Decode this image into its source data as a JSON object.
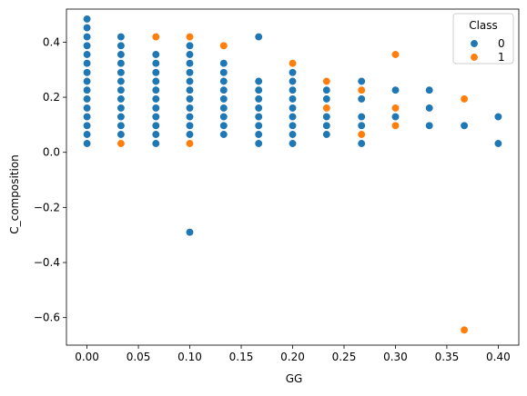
{
  "chart_data": {
    "type": "scatter",
    "xlabel": "GG",
    "ylabel": "C_composition",
    "xlim": [
      -0.02,
      0.42
    ],
    "ylim": [
      -0.7,
      0.52
    ],
    "xticks": [
      0.0,
      0.05,
      0.1,
      0.15,
      0.2,
      0.25,
      0.3,
      0.35,
      0.4
    ],
    "xtick_labels": [
      "0.00",
      "0.05",
      "0.10",
      "0.15",
      "0.20",
      "0.25",
      "0.30",
      "0.35",
      "0.40"
    ],
    "yticks": [
      -0.6,
      -0.4,
      -0.2,
      0.0,
      0.2,
      0.4
    ],
    "ytick_labels": [
      "−0.6",
      "−0.4",
      "−0.2",
      "0.0",
      "0.2",
      "0.4"
    ],
    "grid": false,
    "legend": {
      "title": "Class",
      "placement": "top-right"
    },
    "series": [
      {
        "name": "0",
        "color": "#1f77b4",
        "points": [
          [
            0.0,
            0.032
          ],
          [
            0.0,
            0.065
          ],
          [
            0.0,
            0.097
          ],
          [
            0.0,
            0.129
          ],
          [
            0.0,
            0.161
          ],
          [
            0.0,
            0.194
          ],
          [
            0.0,
            0.226
          ],
          [
            0.0,
            0.258
          ],
          [
            0.0,
            0.29
          ],
          [
            0.0,
            0.323
          ],
          [
            0.0,
            0.355
          ],
          [
            0.0,
            0.387
          ],
          [
            0.0,
            0.419
          ],
          [
            0.0,
            0.452
          ],
          [
            0.0,
            0.484
          ],
          [
            0.033,
            0.065
          ],
          [
            0.033,
            0.097
          ],
          [
            0.033,
            0.129
          ],
          [
            0.033,
            0.161
          ],
          [
            0.033,
            0.194
          ],
          [
            0.033,
            0.226
          ],
          [
            0.033,
            0.258
          ],
          [
            0.033,
            0.29
          ],
          [
            0.033,
            0.323
          ],
          [
            0.033,
            0.355
          ],
          [
            0.033,
            0.387
          ],
          [
            0.033,
            0.419
          ],
          [
            0.067,
            0.032
          ],
          [
            0.067,
            0.065
          ],
          [
            0.067,
            0.097
          ],
          [
            0.067,
            0.129
          ],
          [
            0.067,
            0.161
          ],
          [
            0.067,
            0.194
          ],
          [
            0.067,
            0.226
          ],
          [
            0.067,
            0.258
          ],
          [
            0.067,
            0.29
          ],
          [
            0.067,
            0.323
          ],
          [
            0.067,
            0.355
          ],
          [
            0.1,
            0.065
          ],
          [
            0.1,
            0.097
          ],
          [
            0.1,
            0.129
          ],
          [
            0.1,
            0.161
          ],
          [
            0.1,
            0.194
          ],
          [
            0.1,
            0.226
          ],
          [
            0.1,
            0.258
          ],
          [
            0.1,
            0.29
          ],
          [
            0.1,
            0.323
          ],
          [
            0.1,
            0.355
          ],
          [
            0.1,
            0.387
          ],
          [
            0.1,
            -0.29
          ],
          [
            0.133,
            0.065
          ],
          [
            0.133,
            0.097
          ],
          [
            0.133,
            0.129
          ],
          [
            0.133,
            0.161
          ],
          [
            0.133,
            0.194
          ],
          [
            0.133,
            0.226
          ],
          [
            0.133,
            0.258
          ],
          [
            0.133,
            0.29
          ],
          [
            0.133,
            0.323
          ],
          [
            0.167,
            0.032
          ],
          [
            0.167,
            0.065
          ],
          [
            0.167,
            0.097
          ],
          [
            0.167,
            0.129
          ],
          [
            0.167,
            0.161
          ],
          [
            0.167,
            0.194
          ],
          [
            0.167,
            0.226
          ],
          [
            0.167,
            0.258
          ],
          [
            0.167,
            0.419
          ],
          [
            0.2,
            0.032
          ],
          [
            0.2,
            0.065
          ],
          [
            0.2,
            0.097
          ],
          [
            0.2,
            0.129
          ],
          [
            0.2,
            0.161
          ],
          [
            0.2,
            0.194
          ],
          [
            0.2,
            0.226
          ],
          [
            0.2,
            0.258
          ],
          [
            0.2,
            0.29
          ],
          [
            0.233,
            0.065
          ],
          [
            0.233,
            0.097
          ],
          [
            0.233,
            0.129
          ],
          [
            0.233,
            0.194
          ],
          [
            0.233,
            0.226
          ],
          [
            0.267,
            0.032
          ],
          [
            0.267,
            0.097
          ],
          [
            0.267,
            0.129
          ],
          [
            0.267,
            0.194
          ],
          [
            0.267,
            0.258
          ],
          [
            0.3,
            0.129
          ],
          [
            0.3,
            0.226
          ],
          [
            0.333,
            0.097
          ],
          [
            0.333,
            0.161
          ],
          [
            0.333,
            0.226
          ],
          [
            0.367,
            0.097
          ],
          [
            0.4,
            0.032
          ],
          [
            0.4,
            0.129
          ]
        ]
      },
      {
        "name": "1",
        "color": "#ff7f0e",
        "points": [
          [
            0.033,
            0.032
          ],
          [
            0.067,
            0.419
          ],
          [
            0.1,
            0.419
          ],
          [
            0.1,
            0.032
          ],
          [
            0.133,
            0.387
          ],
          [
            0.2,
            0.323
          ],
          [
            0.233,
            0.258
          ],
          [
            0.233,
            0.161
          ],
          [
            0.267,
            0.226
          ],
          [
            0.267,
            0.065
          ],
          [
            0.3,
            0.355
          ],
          [
            0.3,
            0.161
          ],
          [
            0.3,
            0.097
          ],
          [
            0.367,
            0.194
          ],
          [
            0.367,
            -0.645
          ]
        ]
      }
    ]
  }
}
